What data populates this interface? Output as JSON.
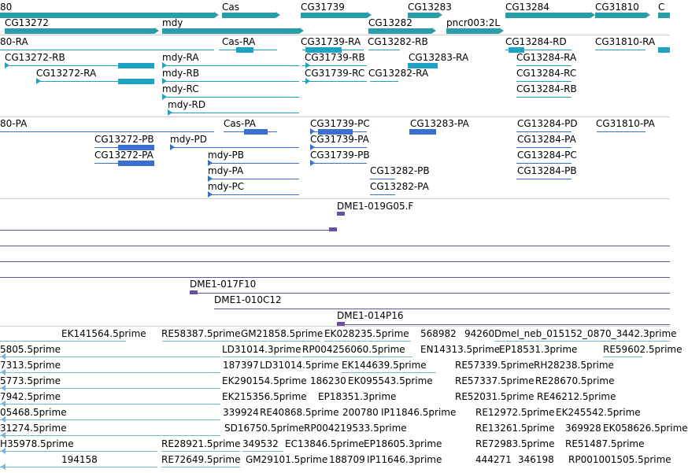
{
  "colors": {
    "gene": "#2a9ea8",
    "transcript": "#1ea3c4",
    "protein": "#3a6fd0",
    "clone": "#6b4fa0",
    "est": "#7ab4dc",
    "separator": "#cfcfcf"
  },
  "tracks": {
    "genes": [
      {
        "label": "80",
        "arrow": "right"
      },
      {
        "label": "Cas",
        "arrow": "right"
      },
      {
        "label": "CG31739",
        "arrow": "right"
      },
      {
        "label": "CG13283",
        "arrow": "right"
      },
      {
        "label": "CG13284",
        "arrow": "right"
      },
      {
        "label": "CG31810",
        "arrow": "right"
      },
      {
        "label": "C",
        "arrow": "none"
      },
      {
        "label": "CG13272",
        "arrow": "right"
      },
      {
        "label": "mdy",
        "arrow": "right"
      },
      {
        "label": "CG13282",
        "arrow": "right"
      },
      {
        "label": "pncr003:2L",
        "arrow": "right"
      }
    ],
    "transcripts": [
      "80-RA",
      "Cas-RA",
      "CG31739-RA",
      "CG13282-RB",
      "CG13284-RD",
      "CG31810-RA",
      "CG13272-RB",
      "mdy-RA",
      "CG31739-RB",
      "CG13283-RA",
      "CG13284-RA",
      "CG13272-RA",
      "mdy-RB",
      "CG31739-RC",
      "CG13282-RA",
      "CG13284-RC",
      "mdy-RC",
      "CG13284-RB",
      "mdy-RD"
    ],
    "proteins": [
      "80-PA",
      "Cas-PA",
      "CG31739-PC",
      "CG13283-PA",
      "CG13284-PD",
      "CG31810-PA",
      "CG13272-PB",
      "mdy-PD",
      "CG31739-PA",
      "CG13284-PA",
      "CG13272-PA",
      "mdy-PB",
      "CG31739-PB",
      "CG13284-PC",
      "mdy-PA",
      "CG13282-PB",
      "CG13284-PB",
      "mdy-PC",
      "CG13282-PA"
    ],
    "clones": [
      "DME1-019G05.F",
      "DME1-017F10",
      "DME1-010C12",
      "DME1-014P16"
    ],
    "ests": [
      "EK141564.5prime",
      "RE58387.5prime",
      "GM21858.5prime",
      "EK028235.5prime",
      "568982",
      "94260",
      "Dmel_neb_015152_0870_3442.3prime",
      "5805.5prime",
      "LD31014.3prime",
      "RP004256060.5prime",
      "EN14313.5prime",
      "EP18531.3prime",
      "RE59602.5prime",
      "7313.5prime",
      "187397",
      "LD31014.5prime",
      "EK144639.5prime",
      "RE57339.5prime",
      "RH28238.5prime",
      "5773.5prime",
      "EK290154.5prime",
      "186230",
      "EK095543.5prime",
      "RE57337.5prime",
      "RE28670.5prime",
      "7942.5prime",
      "EK215356.5prime",
      "EP18351.3prime",
      "RE52031.5prime",
      "RE46212.5prime",
      "05468.5prime",
      "339924",
      "RE40868.5prime",
      "200780",
      "IP11846.5prime",
      "RE12972.5prime",
      "EK245542.5prime",
      "31274.5prime",
      "SD16750.5prime",
      "RP004219533.5prime",
      "RE13261.5prime",
      "369928",
      "EK058626.5prime",
      "H35978.5prime",
      "RE28921.5prime",
      "349532",
      "EC13846.5prime",
      "EP18605.3prime",
      "RE72983.5prime",
      "RE51487.5prime",
      "194158",
      "RE72649.5prime",
      "GM29101.5prime",
      "188709",
      "IP11646.3prime",
      "444271",
      "346198",
      "RP001001505.5prime"
    ]
  }
}
